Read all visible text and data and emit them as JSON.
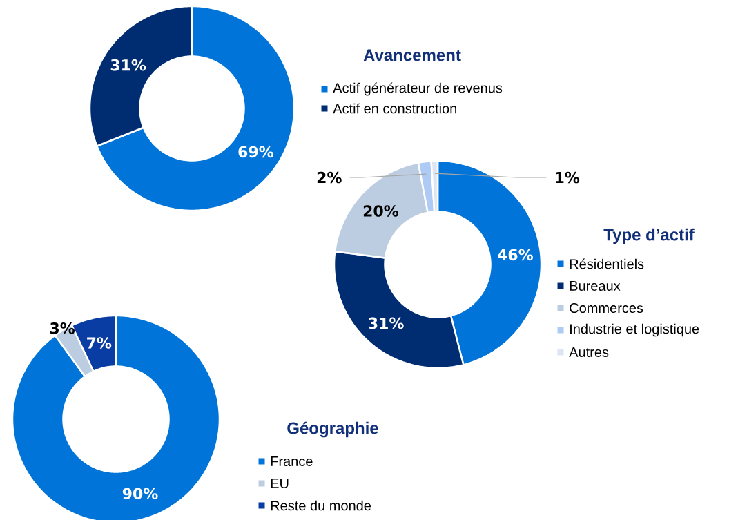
{
  "chart_data": [
    {
      "type": "donut",
      "title": "Avancement",
      "categories": [
        "Actif générateur de revenus",
        "Actif en construction"
      ],
      "values": [
        69,
        31
      ],
      "colors": [
        "#0074d9",
        "#002d72"
      ],
      "value_labels": [
        "69%",
        "31%"
      ],
      "legend": "right"
    },
    {
      "type": "donut",
      "title": "Type d’actif",
      "categories": [
        "Résidentiels",
        "Bureaux",
        "Commerces",
        "Industrie et logistique",
        "Autres"
      ],
      "values": [
        46,
        31,
        20,
        2,
        1
      ],
      "colors": [
        "#0074d9",
        "#002d72",
        "#bccde2",
        "#aecbf6",
        "#dce5f1"
      ],
      "value_labels": [
        "46%",
        "31%",
        "20%",
        "2%",
        "1%"
      ],
      "legend": "right"
    },
    {
      "type": "donut",
      "title": "Géographie",
      "categories": [
        "France",
        "EU",
        "Reste du monde"
      ],
      "values": [
        90,
        3,
        7
      ],
      "colors": [
        "#0074d9",
        "#bccde2",
        "#0a3da3"
      ],
      "value_labels": [
        "90%",
        "3%",
        "7%"
      ],
      "legend": "right"
    }
  ]
}
